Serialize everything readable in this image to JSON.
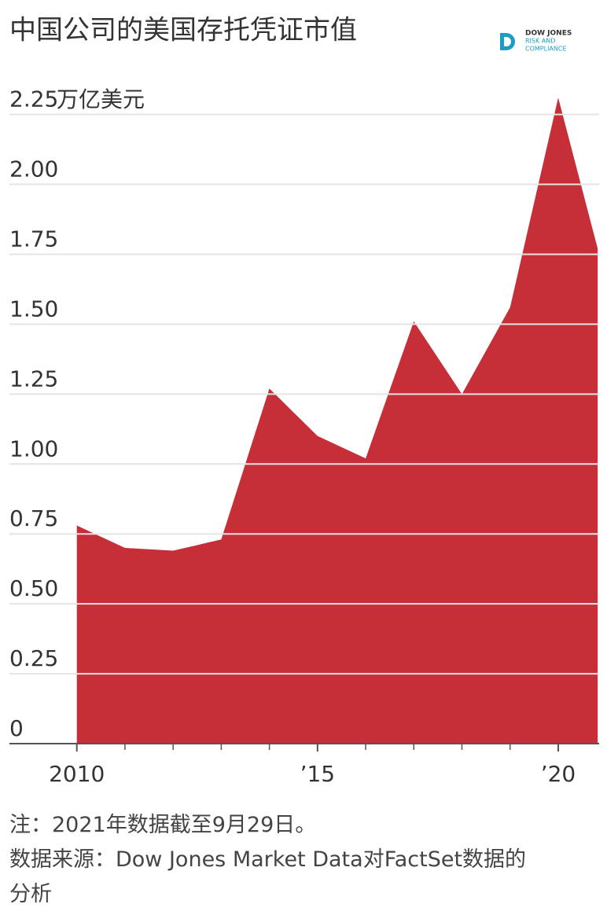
{
  "chart_data": {
    "type": "area",
    "title": "中国公司的美国存托凭证市值",
    "y_unit": "万亿美元",
    "x": [
      2010,
      2011,
      2012,
      2013,
      2014,
      2015,
      2016,
      2017,
      2018,
      2019,
      2020,
      2020.82
    ],
    "values": [
      0.78,
      0.7,
      0.69,
      0.73,
      1.27,
      1.1,
      1.02,
      1.51,
      1.25,
      1.56,
      2.31,
      1.77
    ],
    "color": "#c62f38",
    "xlim": [
      2008.6,
      2020.85
    ],
    "xticks": [
      2010,
      {
        "value": 2015,
        "label": "’15"
      },
      {
        "value": 2020,
        "label": "’20"
      }
    ],
    "xminorticks": [
      2011,
      2012,
      2013,
      2014,
      2016,
      2017,
      2018,
      2019
    ],
    "ylim": [
      0,
      2.35
    ],
    "yticks": [
      0,
      0.25,
      {
        "value": 0.5,
        "label": "0.50"
      },
      0.75,
      {
        "value": 1,
        "label": "1.00"
      },
      1.25,
      {
        "value": 1.5,
        "label": "1.50"
      },
      1.75,
      {
        "value": 2,
        "label": "2.00"
      },
      2.25
    ],
    "grid": true
  },
  "logo": {
    "line1": "DOW JONES",
    "line2": "RISK AND",
    "line3": "COMPLIANCE"
  },
  "notes": {
    "note": "注：2021年数据截至9月29日。",
    "source": "数据来源：Dow Jones Market Data对FactSet数据的分析"
  }
}
